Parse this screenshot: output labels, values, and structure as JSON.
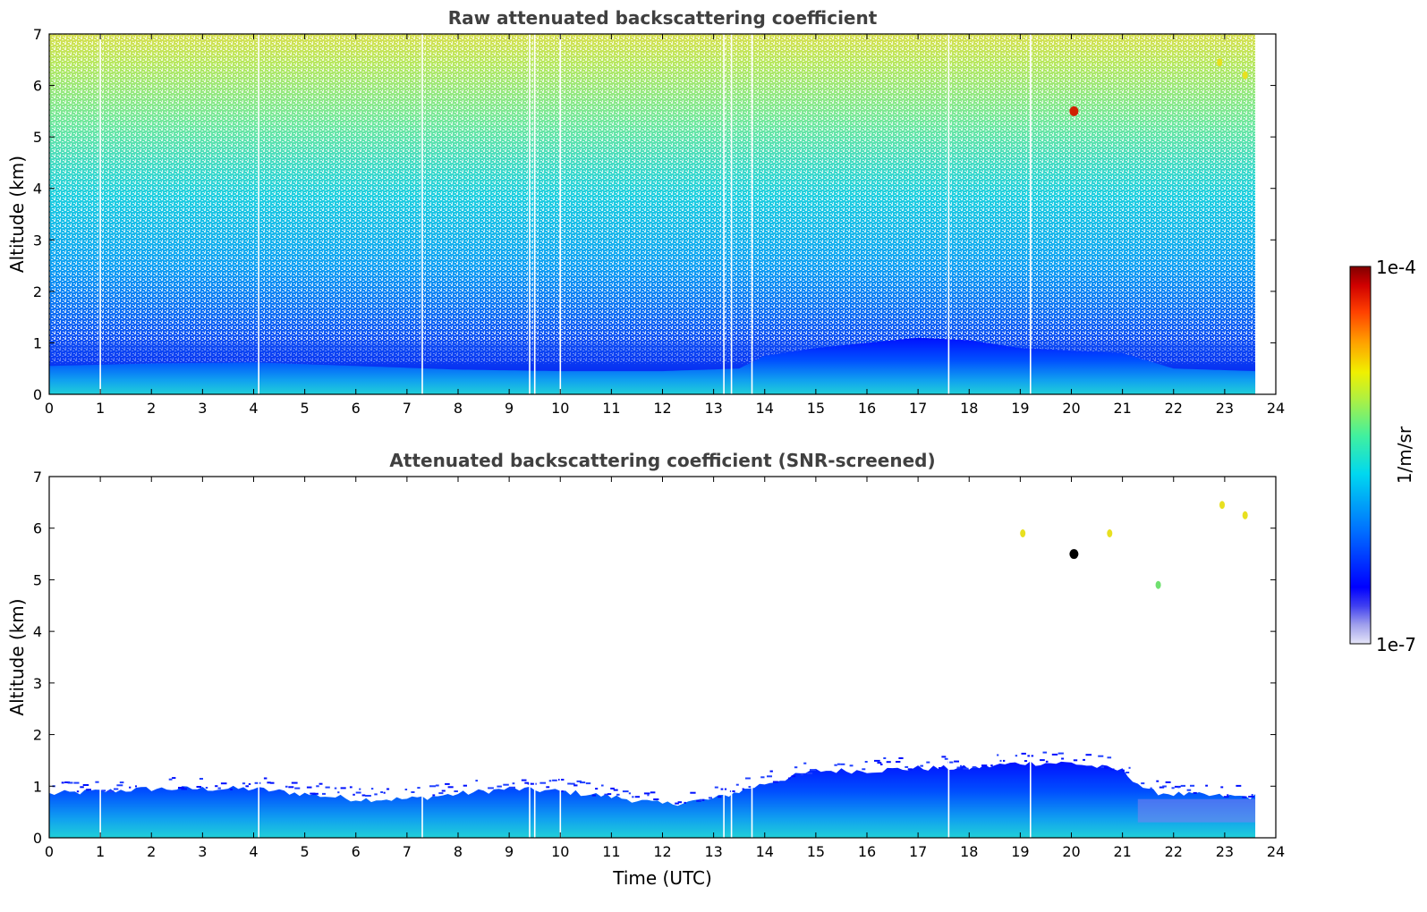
{
  "chart_data": [
    {
      "type": "heatmap",
      "title": "Raw attenuated backscattering coefficient",
      "xlabel": "",
      "ylabel": "Altitude (km)",
      "xlim": [
        0,
        24
      ],
      "ylim": [
        0,
        7
      ],
      "x_ticks": [
        "0",
        "1",
        "2",
        "3",
        "4",
        "5",
        "6",
        "7",
        "8",
        "9",
        "10",
        "11",
        "12",
        "13",
        "14",
        "15",
        "16",
        "17",
        "18",
        "19",
        "20",
        "21",
        "22",
        "23",
        "24"
      ],
      "y_ticks": [
        "0",
        "1",
        "2",
        "3",
        "4",
        "5",
        "6",
        "7"
      ],
      "data_end_hour": 23.6,
      "gaps_hours": [
        1.0,
        4.1,
        7.3,
        9.4,
        9.5,
        10.0,
        13.2,
        13.35,
        13.75,
        17.6,
        19.2
      ],
      "boundary_layer_top_km": [
        [
          0,
          0.55
        ],
        [
          2,
          0.6
        ],
        [
          4,
          0.62
        ],
        [
          6,
          0.55
        ],
        [
          8,
          0.48
        ],
        [
          10,
          0.45
        ],
        [
          12,
          0.45
        ],
        [
          13.5,
          0.5
        ],
        [
          14,
          0.75
        ],
        [
          15,
          0.9
        ],
        [
          16,
          1.0
        ],
        [
          17,
          1.1
        ],
        [
          18,
          1.05
        ],
        [
          19,
          0.9
        ],
        [
          20,
          0.85
        ],
        [
          21,
          0.8
        ],
        [
          22,
          0.5
        ],
        [
          23.6,
          0.45
        ]
      ],
      "features": [
        {
          "name": "cloud",
          "x": 20.05,
          "y": 5.5,
          "value": "1e-4"
        },
        {
          "name": "cloud",
          "x": 23.4,
          "y": 6.2,
          "value": "1e-5"
        },
        {
          "name": "cloud",
          "x": 22.9,
          "y": 6.45,
          "value": "1e-5"
        }
      ]
    },
    {
      "type": "heatmap",
      "title": "Attenuated backscattering coefficient (SNR-screened)",
      "xlabel": "Time (UTC)",
      "ylabel": "Altitude (km)",
      "xlim": [
        0,
        24
      ],
      "ylim": [
        0,
        7
      ],
      "x_ticks": [
        "0",
        "1",
        "2",
        "3",
        "4",
        "5",
        "6",
        "7",
        "8",
        "9",
        "10",
        "11",
        "12",
        "13",
        "14",
        "15",
        "16",
        "17",
        "18",
        "19",
        "20",
        "21",
        "22",
        "23",
        "24"
      ],
      "y_ticks": [
        "0",
        "1",
        "2",
        "3",
        "4",
        "5",
        "6",
        "7"
      ],
      "data_end_hour": 23.6,
      "gaps_hours": [
        1.0,
        4.1,
        7.3,
        9.4,
        9.5,
        10.0,
        13.2,
        13.35,
        13.75,
        17.6,
        19.2
      ],
      "boundary_layer_top_km": [
        [
          0,
          0.85
        ],
        [
          1,
          0.9
        ],
        [
          2,
          0.95
        ],
        [
          3,
          0.95
        ],
        [
          4,
          0.95
        ],
        [
          5,
          0.85
        ],
        [
          6,
          0.75
        ],
        [
          7,
          0.75
        ],
        [
          8,
          0.85
        ],
        [
          9,
          0.95
        ],
        [
          10,
          0.9
        ],
        [
          11,
          0.8
        ],
        [
          12,
          0.65
        ],
        [
          13,
          0.75
        ],
        [
          14,
          1.05
        ],
        [
          15,
          1.3
        ],
        [
          16,
          1.3
        ],
        [
          17,
          1.35
        ],
        [
          18,
          1.35
        ],
        [
          19,
          1.45
        ],
        [
          20,
          1.45
        ],
        [
          21,
          1.3
        ],
        [
          21.5,
          0.9
        ],
        [
          22,
          0.85
        ],
        [
          23,
          0.8
        ],
        [
          23.6,
          0.8
        ]
      ],
      "features": [
        {
          "name": "cloud",
          "x": 20.05,
          "y": 5.5,
          "value": "saturated"
        },
        {
          "name": "cloud",
          "x": 19.05,
          "y": 5.9,
          "value": "1e-5"
        },
        {
          "name": "cloud",
          "x": 23.4,
          "y": 6.25,
          "value": "1e-5"
        },
        {
          "name": "cloud",
          "x": 22.95,
          "y": 6.45,
          "value": "1e-5"
        },
        {
          "name": "cloud",
          "x": 20.75,
          "y": 5.9,
          "value": "1e-5"
        },
        {
          "name": "cloud",
          "x": 21.7,
          "y": 4.9,
          "value": "5e-6"
        }
      ]
    }
  ],
  "colorbar": {
    "label": "1/m/sr",
    "max_label": "1e-4",
    "min_label": "1e-7",
    "scale": "log",
    "colors": [
      "#e6e6f8",
      "#c8c8f0",
      "#a0a0ec",
      "#7070ee",
      "#3030f4",
      "#0000ff",
      "#0030ff",
      "#0070ff",
      "#00b0ff",
      "#00e0ee",
      "#20f0c0",
      "#60f080",
      "#a0f040",
      "#e0f000",
      "#ffd000",
      "#ff9000",
      "#ff5000",
      "#f01000",
      "#c00000",
      "#800000"
    ]
  }
}
